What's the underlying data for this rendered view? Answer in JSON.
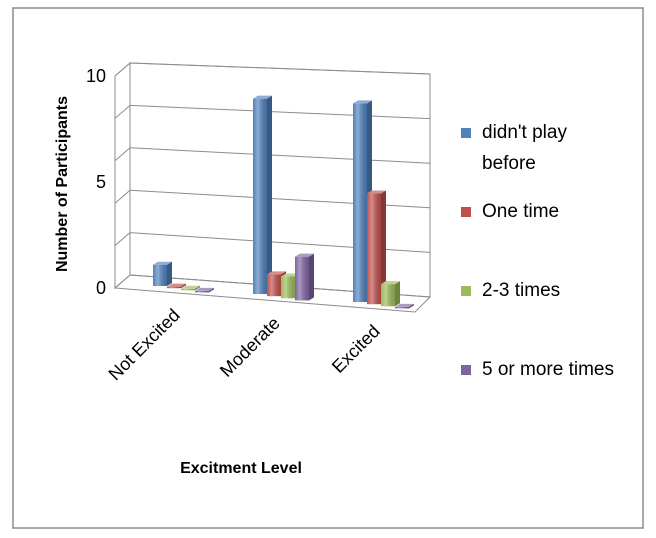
{
  "chart_data": {
    "type": "bar",
    "style": "3d-clustered-column",
    "title": "",
    "xlabel": "Excitment Level",
    "ylabel": "Number of Participants",
    "categories": [
      "Not Excited",
      "Moderate",
      "Excited"
    ],
    "yticks": [
      "0",
      "5",
      "10"
    ],
    "ylim": [
      0,
      10
    ],
    "grid": true,
    "legend_position": "right",
    "series": [
      {
        "name": "didn't play before",
        "values": [
          1,
          9,
          9
        ],
        "color": "#4f81bd"
      },
      {
        "name": "One time",
        "values": [
          0,
          1,
          5
        ],
        "color": "#c0504d"
      },
      {
        "name": "2-3 times",
        "values": [
          0,
          1,
          1
        ],
        "color": "#9bbb59"
      },
      {
        "name": "5 or more times",
        "values": [
          0,
          2,
          0
        ],
        "color": "#8064a2"
      }
    ]
  }
}
